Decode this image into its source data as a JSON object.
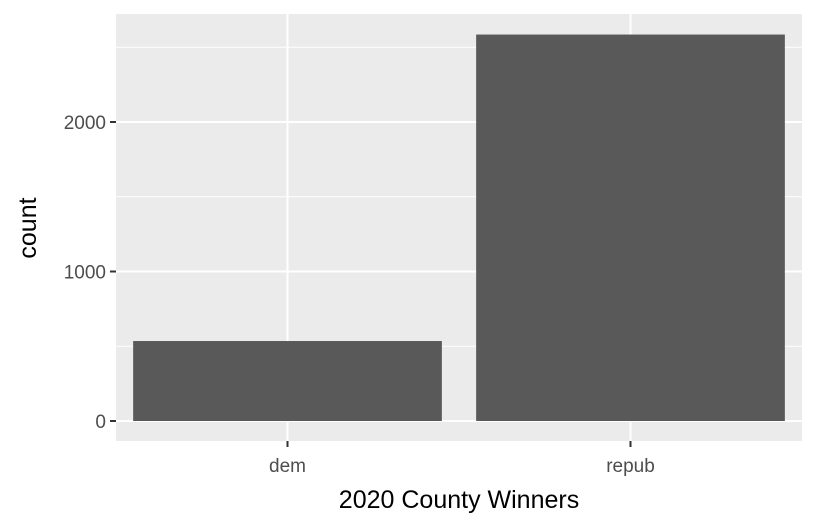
{
  "chart_data": {
    "type": "bar",
    "categories": [
      "dem",
      "repub"
    ],
    "values": [
      535,
      2585
    ],
    "xlabel": "2020 County Winners",
    "ylabel": "count",
    "ylim": [
      0,
      2720
    ],
    "yticks": [
      0,
      1000,
      2000
    ],
    "ytick_labels": [
      "0",
      "1000",
      "2000"
    ],
    "grid": true,
    "colors": {
      "panel_background": "#ebebeb",
      "grid_major": "#ffffff",
      "bar_fill": "#595959",
      "tick_mark": "#333333",
      "tick_label": "#4d4d4d"
    }
  }
}
